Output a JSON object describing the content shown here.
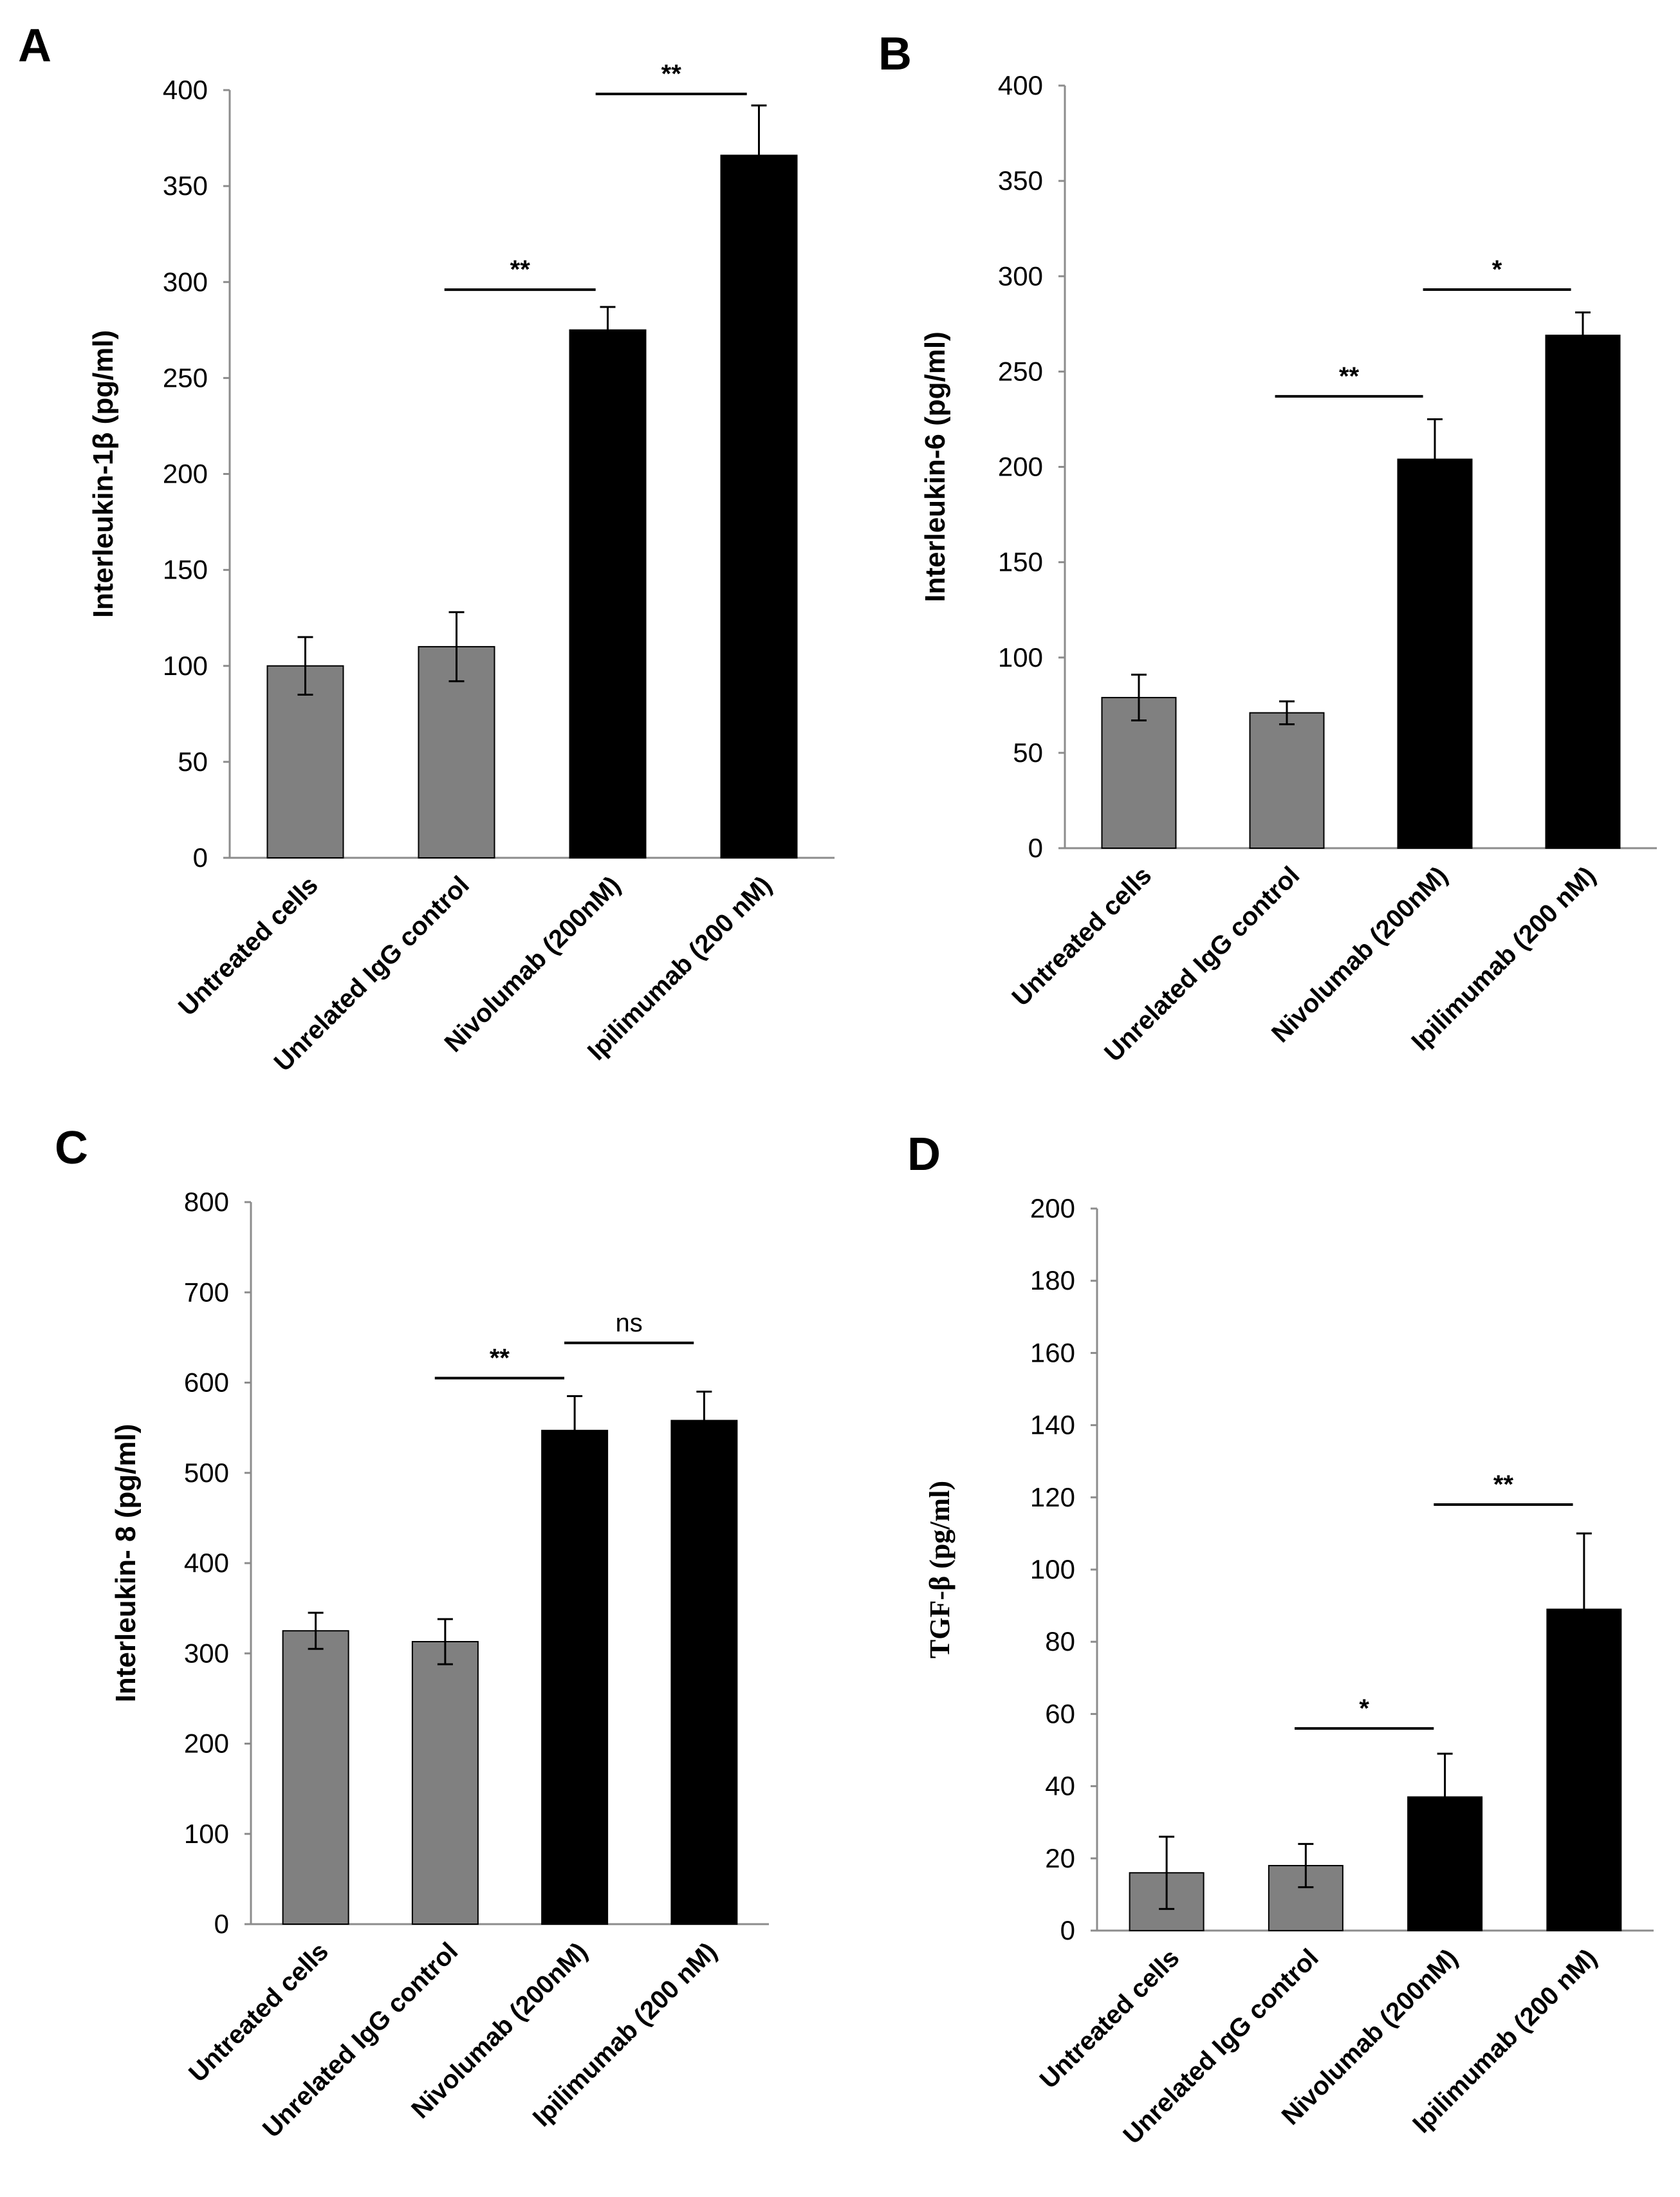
{
  "chart_data": [
    {
      "panel": "A",
      "type": "bar",
      "ylabel": "Interleukin-1β   (pg/ml)",
      "ylim": [
        0,
        400
      ],
      "yticks": [
        0,
        50,
        100,
        150,
        200,
        250,
        300,
        350,
        400
      ],
      "categories": [
        "Untreated cells",
        "Unrelated IgG control",
        "Nivolumab (200nM)",
        "Ipilimumab (200 nM)"
      ],
      "values": [
        100,
        110,
        275,
        366
      ],
      "errors": [
        15,
        18,
        12,
        26
      ],
      "bar_colors": [
        "#808080",
        "#808080",
        "#000000",
        "#000000"
      ],
      "significance": [
        {
          "from": 1,
          "to": 2,
          "label": "**",
          "y": 296
        },
        {
          "from": 2,
          "to": 3,
          "label": "**",
          "y": 398
        }
      ]
    },
    {
      "panel": "B",
      "type": "bar",
      "ylabel": "Interleukin-6   (pg/ml)",
      "ylim": [
        0,
        400
      ],
      "yticks": [
        0,
        50,
        100,
        150,
        200,
        250,
        300,
        350,
        400
      ],
      "categories": [
        "Untreated cells",
        "Unrelated IgG control",
        "Nivolumab (200nM)",
        "Ipilimumab (200 nM)"
      ],
      "values": [
        79,
        71,
        204,
        269
      ],
      "errors": [
        12,
        6,
        21,
        12
      ],
      "bar_colors": [
        "#808080",
        "#808080",
        "#000000",
        "#000000"
      ],
      "significance": [
        {
          "from": 1,
          "to": 2,
          "label": "**",
          "y": 237
        },
        {
          "from": 2,
          "to": 3,
          "label": "*",
          "y": 293
        }
      ]
    },
    {
      "panel": "C",
      "type": "bar",
      "ylabel": "Interleukin- 8   (pg/ml)",
      "ylim": [
        0,
        800
      ],
      "yticks": [
        0,
        100,
        200,
        300,
        400,
        500,
        600,
        700,
        800
      ],
      "categories": [
        "Untreated cells",
        "Unrelated IgG control",
        "Nivolumab (200nM)",
        "Ipilimumab (200 nM)"
      ],
      "values": [
        325,
        313,
        547,
        558
      ],
      "errors": [
        20,
        25,
        38,
        32
      ],
      "bar_colors": [
        "#808080",
        "#808080",
        "#000000",
        "#000000"
      ],
      "significance": [
        {
          "from": 1,
          "to": 2,
          "label": "**",
          "y": 605
        },
        {
          "from": 2,
          "to": 3,
          "label": "ns",
          "y": 644
        }
      ]
    },
    {
      "panel": "D",
      "type": "bar",
      "ylabel": "TGF-β   (pg/ml)",
      "ylim": [
        0,
        200
      ],
      "yticks": [
        0,
        20,
        40,
        60,
        80,
        100,
        120,
        140,
        160,
        180,
        200
      ],
      "categories": [
        "Untreated cells",
        "Unrelated IgG control",
        "Nivolumab (200nM)",
        "Ipilimumab (200 nM)"
      ],
      "values": [
        16,
        18,
        37,
        89
      ],
      "errors": [
        10,
        6,
        12,
        21
      ],
      "bar_colors": [
        "#808080",
        "#808080",
        "#000000",
        "#000000"
      ],
      "significance": [
        {
          "from": 1,
          "to": 2,
          "label": "*",
          "y": 56
        },
        {
          "from": 2,
          "to": 3,
          "label": "**",
          "y": 118
        }
      ]
    }
  ]
}
